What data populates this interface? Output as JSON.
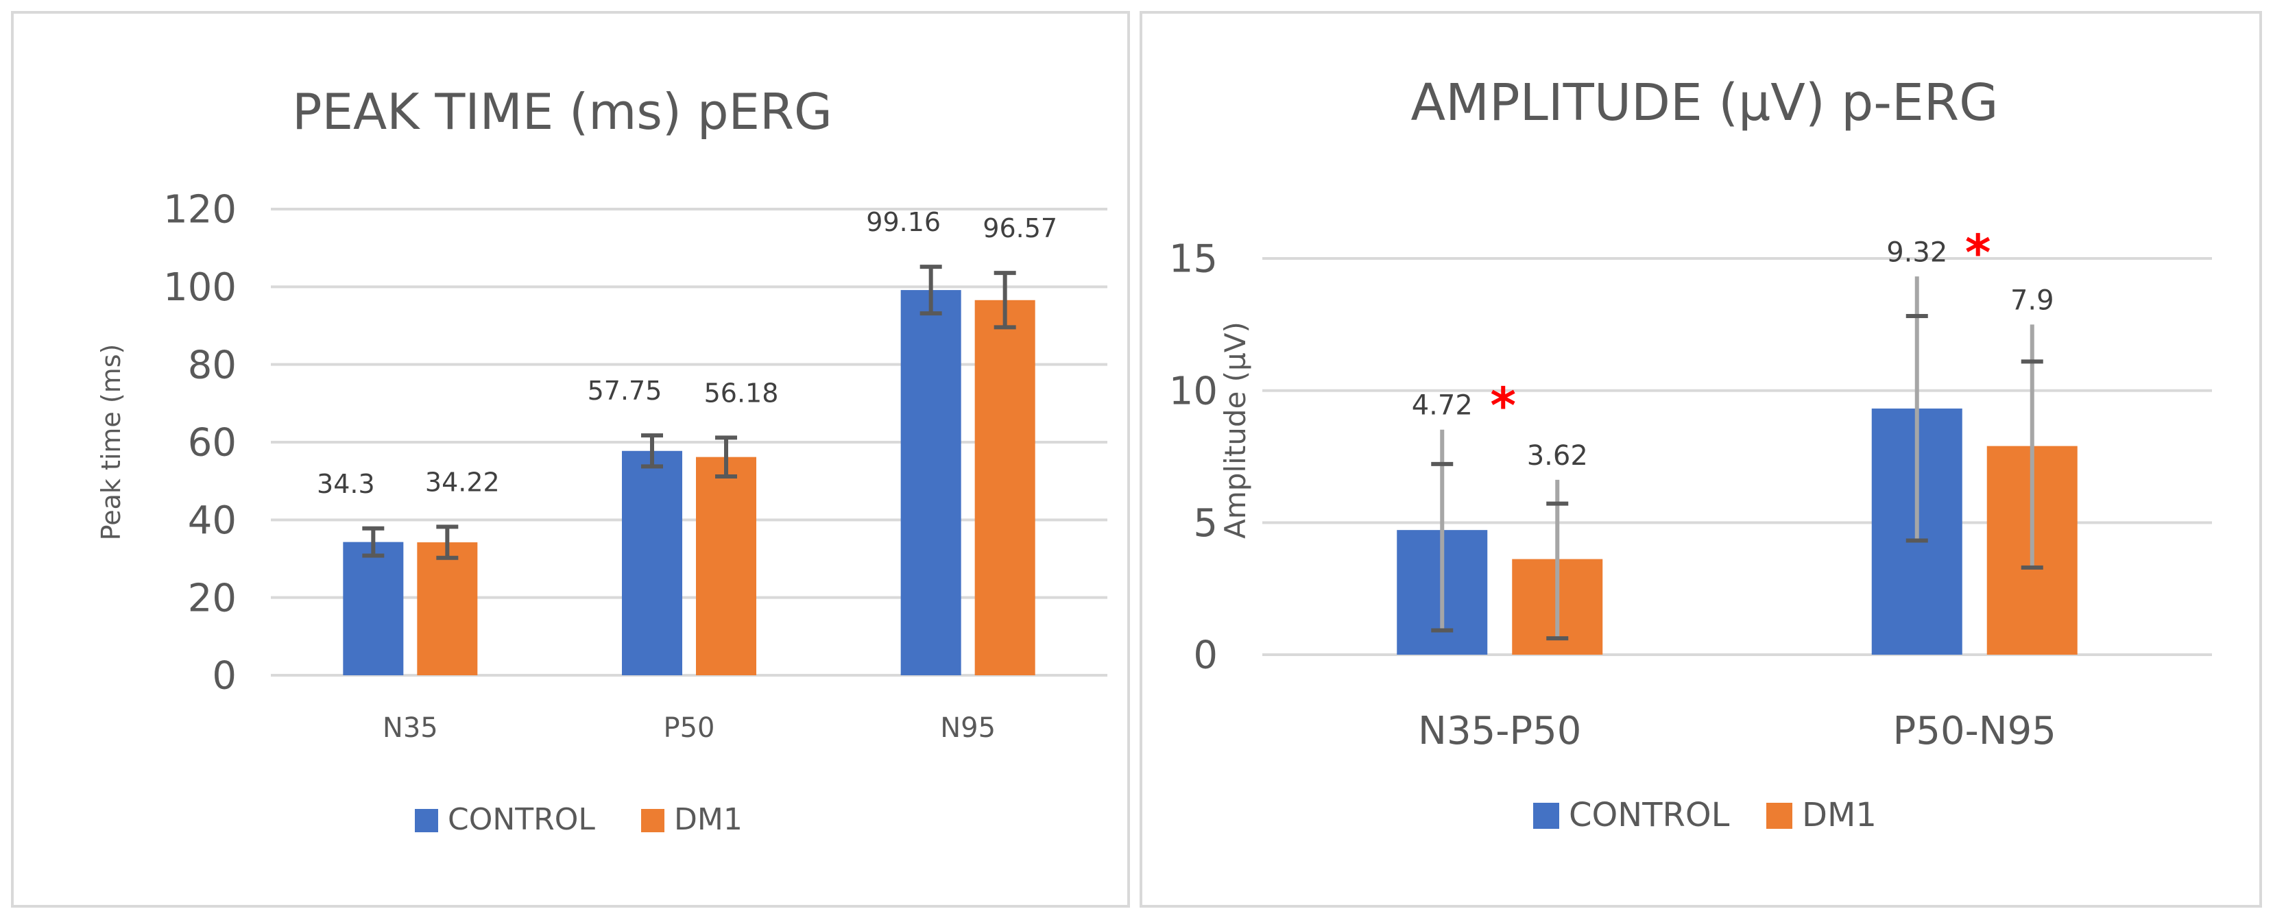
{
  "colors": {
    "control": "#4472c4",
    "dm1": "#ed7d31",
    "grid": "#d9d9d9",
    "axis_text": "#595959",
    "significance": "#ff0000"
  },
  "chart_data": [
    {
      "type": "bar",
      "title": "PEAK TIME (ms) pERG",
      "xlabel": "",
      "ylabel": "Peak time (ms)",
      "ylim": [
        0,
        120
      ],
      "yticks": [
        0,
        20,
        40,
        60,
        80,
        100,
        120
      ],
      "categories": [
        "N35",
        "P50",
        "N95"
      ],
      "series": [
        {
          "name": "CONTROL",
          "values": [
            34.3,
            57.75,
            99.16
          ],
          "labels": [
            "34.3",
            "57.75",
            "99.16"
          ],
          "error": [
            3.5,
            4,
            6
          ]
        },
        {
          "name": "DM1",
          "values": [
            34.22,
            56.18,
            96.57
          ],
          "labels": [
            "34.22",
            "56.18",
            "96.57"
          ],
          "error": [
            4,
            5,
            7
          ]
        }
      ],
      "grid": true,
      "legend": "bottom",
      "significance": []
    },
    {
      "type": "bar",
      "title": "AMPLITUDE (µV) p-ERG",
      "xlabel": "",
      "ylabel": "Amplitude (µV)",
      "ylim": [
        0,
        17
      ],
      "yticks": [
        0,
        5,
        10,
        15
      ],
      "categories": [
        "N35-P50",
        "P50-N95"
      ],
      "series": [
        {
          "name": "CONTROL",
          "values": [
            4.72,
            9.32
          ],
          "labels": [
            "4.72",
            "9.32"
          ],
          "error": [
            3.8,
            5
          ],
          "inner_error": [
            2.5,
            3.5
          ]
        },
        {
          "name": "DM1",
          "values": [
            3.62,
            7.9
          ],
          "labels": [
            "3.62",
            "7.9"
          ],
          "error": [
            3,
            4.6
          ],
          "inner_error": [
            2.1,
            3.2
          ]
        }
      ],
      "grid": true,
      "legend": "bottom",
      "significance": [
        {
          "category": "N35-P50",
          "symbol": "*"
        },
        {
          "category": "P50-N95",
          "symbol": "*"
        }
      ]
    }
  ]
}
